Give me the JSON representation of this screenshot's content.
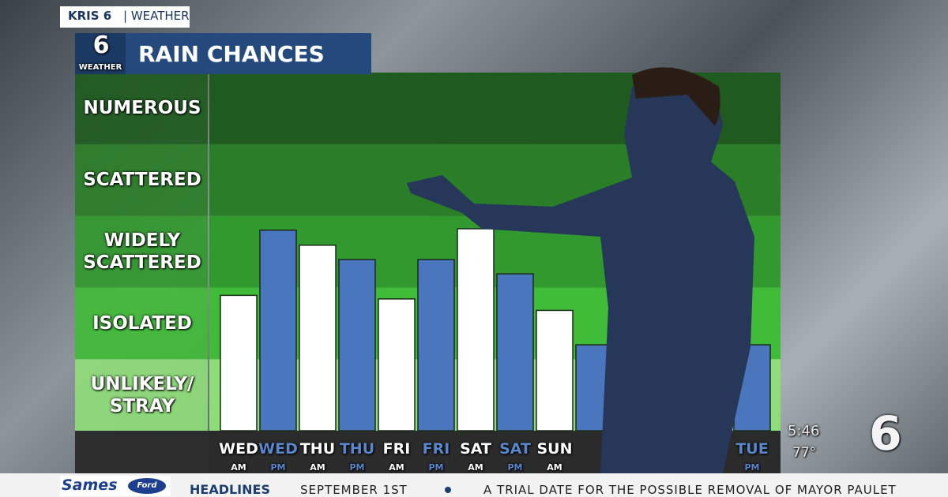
{
  "chart_data": {
    "type": "bar",
    "title": "RAIN CHANCES",
    "categories": [
      "WED",
      "WED",
      "THU",
      "THU",
      "FRI",
      "FRI",
      "SAT",
      "SAT",
      "SUN",
      null,
      null,
      null,
      null,
      "TUE"
    ],
    "periods": [
      "AM",
      "PM",
      "AM",
      "PM",
      "AM",
      "PM",
      "AM",
      "PM",
      "AM",
      null,
      null,
      null,
      null,
      "PM"
    ],
    "values": [
      1.89,
      2.8,
      2.59,
      2.39,
      1.84,
      2.39,
      2.82,
      2.19,
      1.68,
      1.2,
      null,
      null,
      null,
      1.2
    ],
    "colors": [
      "#ffffff",
      "#4a76be"
    ],
    "ylim": [
      0,
      5
    ],
    "yticks": [
      {
        "value": 0.5,
        "label": "UNLIKELY/ STRAY"
      },
      {
        "value": 1.5,
        "label": "ISOLATED"
      },
      {
        "value": 2.5,
        "label": "WIDELY SCATTERED"
      },
      {
        "value": 3.5,
        "label": "SCATTERED"
      },
      {
        "value": 4.5,
        "label": "NUMEROUS"
      }
    ],
    "band_colors": [
      "#8fdc7a",
      "#40bb37",
      "#32992e",
      "#2a7e27",
      "#1f5b1f"
    ]
  },
  "header": {
    "station": "KRIS 6",
    "section": "| WEATHER",
    "logo_number": "6",
    "logo_text": "WEATHER"
  },
  "ticker": {
    "sponsor": "Sames",
    "brand": "Ford",
    "label": "HEADLINES",
    "date": "SEPTEMBER 1ST",
    "headline": "A TRIAL DATE FOR THE POSSIBLE REMOVAL OF MAYOR PAULET"
  },
  "bug": {
    "time": "5:46",
    "temperature": "77°",
    "logo_number": "6"
  }
}
